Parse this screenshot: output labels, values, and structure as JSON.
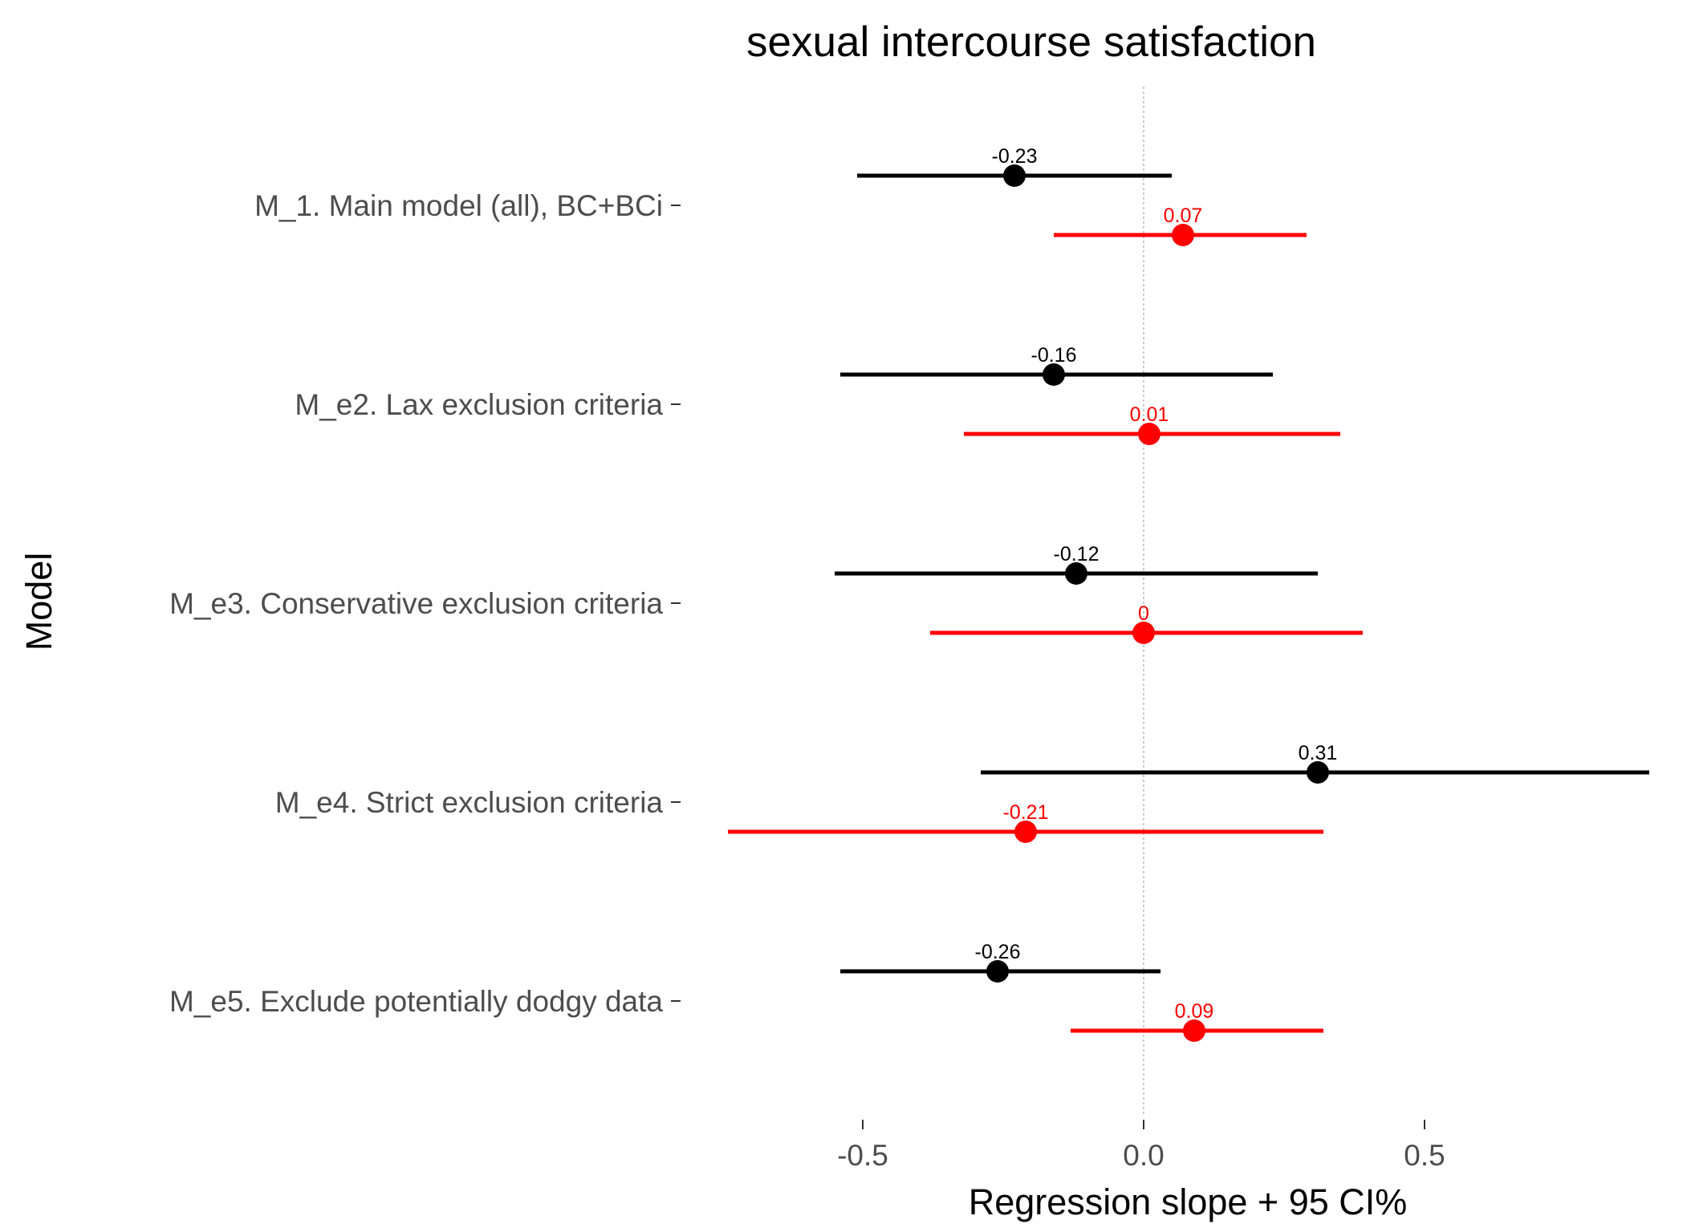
{
  "chart_data": {
    "type": "forest",
    "title": "sexual intercourse satisfaction",
    "xlabel": "Regression slope + 95 CI%",
    "ylabel": "Model",
    "xlim": [
      -0.85,
      0.93
    ],
    "xticks": [
      -0.5,
      0.0,
      0.5
    ],
    "xtick_labels": [
      "-0.5",
      "0.0",
      "0.5"
    ],
    "reference_line": 0,
    "grid": false,
    "legend": "none",
    "colors": {
      "series_a": "#000000",
      "series_b": "#ff0000",
      "reference": "#cccccc"
    },
    "categories": [
      "M_1. Main model (all), BC+BCi",
      "M_e2. Lax exclusion criteria",
      "M_e3. Conservative exclusion criteria",
      "M_e4. Strict exclusion criteria",
      "M_e5. Exclude potentially dodgy data"
    ],
    "series": [
      {
        "color": "#000000",
        "estimates": [
          -0.23,
          -0.16,
          -0.12,
          0.31,
          -0.26
        ],
        "ci_low": [
          -0.51,
          -0.54,
          -0.55,
          -0.29,
          -0.54
        ],
        "ci_high": [
          0.05,
          0.23,
          0.31,
          0.9,
          0.03
        ],
        "labels": [
          "-0.23",
          "-0.16",
          "-0.12",
          "0.31",
          "-0.26"
        ]
      },
      {
        "color": "#ff0000",
        "estimates": [
          0.07,
          0.01,
          0.0,
          -0.21,
          0.09
        ],
        "ci_low": [
          -0.16,
          -0.32,
          -0.38,
          -0.74,
          -0.13
        ],
        "ci_high": [
          0.29,
          0.35,
          0.39,
          0.32,
          0.32
        ],
        "labels": [
          "0.07",
          "0.01",
          "0",
          "-0.21",
          "0.09"
        ]
      }
    ]
  }
}
